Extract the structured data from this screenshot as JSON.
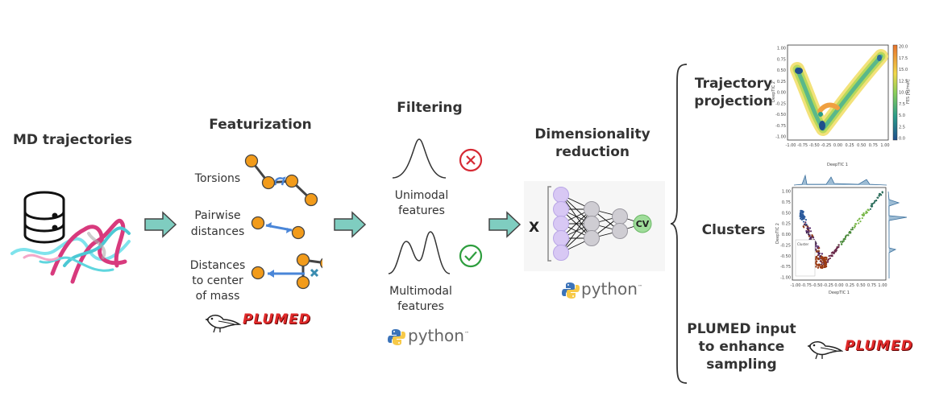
{
  "sections": {
    "md_trajectories": "MD trajectories",
    "featurization": "Featurization",
    "filtering": "Filtering",
    "dimensionality_line1": "Dimensionality",
    "dimensionality_line2": "reduction",
    "trajectory_projection_line1": "Trajectory",
    "trajectory_projection_line2": "projection",
    "clusters": "Clusters",
    "plumed_input_line1": "PLUMED input",
    "plumed_input_line2": "to enhance",
    "plumed_input_line3": "sampling"
  },
  "features": {
    "torsions": "Torsions",
    "pairwise_line1": "Pairwise",
    "pairwise_line2": "distances",
    "com_line1": "Distances",
    "com_line2": "to center",
    "com_line3": "of mass"
  },
  "filtering": {
    "unimodal_line1": "Unimodal",
    "unimodal_line2": "features",
    "multimodal_line1": "Multimodal",
    "multimodal_line2": "features"
  },
  "network": {
    "input_label": "X",
    "output_label": "CV"
  },
  "logos": {
    "plumed": "PLUMED",
    "python": "python"
  },
  "plot1": {
    "xlabel": "DeepTIC 1",
    "ylabel": "DeepTIC 2",
    "colorbar_label": "FES [kJ/mol]",
    "xticks": [
      "-1.00",
      "-0.75",
      "-0.50",
      "-0.25",
      "0.00",
      "0.25",
      "0.50",
      "0.75",
      "1.00"
    ],
    "yticks": [
      "1.00",
      "0.75",
      "0.50",
      "0.25",
      "0.00",
      "-0.25",
      "-0.50",
      "-0.75",
      "-1.00"
    ],
    "cbar_ticks": [
      "20.0",
      "17.5",
      "15.0",
      "12.5",
      "10.0",
      "7.5",
      "5.0",
      "2.5",
      "0.0"
    ]
  },
  "plot2": {
    "xlabel": "DeepTIC 1",
    "ylabel": "DeepTIC 2",
    "legend_title": "Cluster",
    "xticks": [
      "-1.00",
      "-0.75",
      "-0.50",
      "-0.25",
      "0.00",
      "0.25",
      "0.50",
      "0.75",
      "1.00"
    ],
    "yticks": [
      "1.00",
      "0.75",
      "0.50",
      "0.25",
      "0.00",
      "-0.25",
      "-0.50",
      "-0.75",
      "-1.00"
    ]
  },
  "colors": {
    "arrow": "#7fcdc0",
    "node_orange": "#f29b1a",
    "cross_red": "#d62a34",
    "check_green": "#2e9e3e",
    "nn_input": "#d8c8f4",
    "nn_hidden": "#cfcdd3",
    "cv_green": "#9fdc9a",
    "distance_blue": "#4a86d8"
  }
}
